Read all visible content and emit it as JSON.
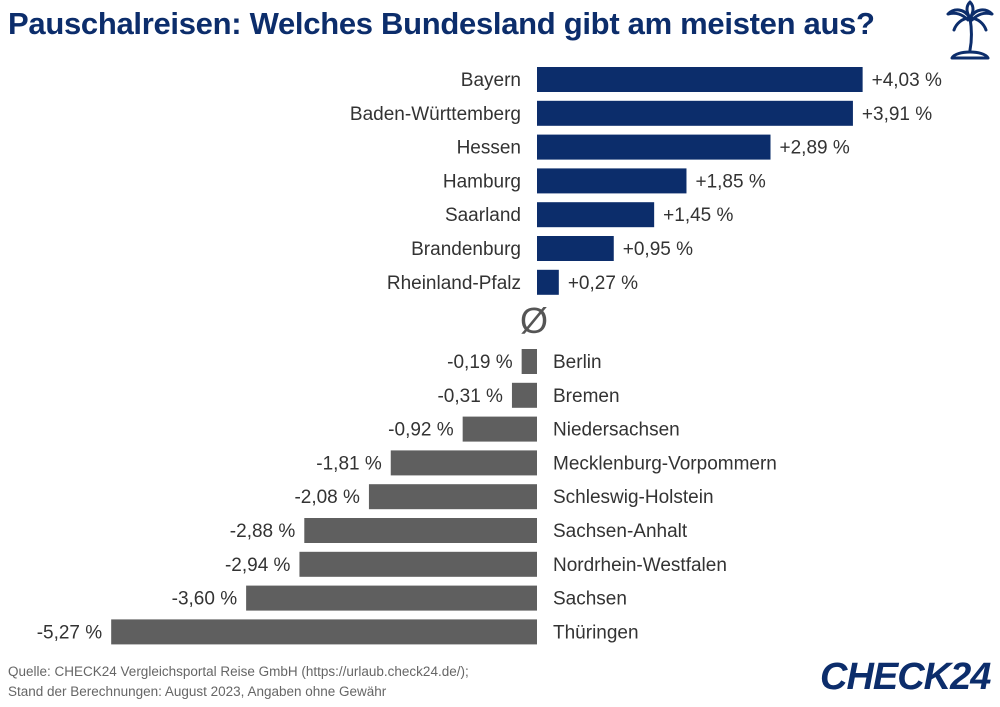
{
  "title": "Pauschalreisen: Welches Bundesland gibt am meisten aus?",
  "average_symbol": "Ø",
  "source_line1": "Quelle: CHECK24 Vergleichsportal Reise GmbH (https://urlaub.check24.de/);",
  "source_line2": "Stand der Berechnungen: August  2023, Angaben ohne Gewähr",
  "logo": "CHECK24",
  "icons": {
    "title_icon": "palm-island-icon"
  },
  "colors": {
    "positive": "#0c2d6b",
    "negative": "#5f5f5f"
  },
  "chart_data": {
    "type": "bar",
    "orientation": "horizontal",
    "categories": [
      "Bayern",
      "Baden-Württemberg",
      "Hessen",
      "Hamburg",
      "Saarland",
      "Brandenburg",
      "Rheinland-Pfalz",
      "Berlin",
      "Bremen",
      "Niedersachsen",
      "Mecklenburg-Vorpommern",
      "Schleswig-Holstein",
      "Sachsen-Anhalt",
      "Nordrhein-Westfalen",
      "Sachsen",
      "Thüringen"
    ],
    "values": [
      4.03,
      3.91,
      2.89,
      1.85,
      1.45,
      0.95,
      0.27,
      -0.19,
      -0.31,
      -0.92,
      -1.81,
      -2.08,
      -2.88,
      -2.94,
      -3.6,
      -5.27
    ],
    "value_labels": [
      "+4,03 %",
      "+3,91 %",
      "+2,89 %",
      "+1,85 %",
      "+1,45 %",
      "+0,95 %",
      "+0,27 %",
      "-0,19 %",
      "-0,31 %",
      "-0,92 %",
      "-1,81 %",
      "-2,08 %",
      "-2,88 %",
      "-2,94 %",
      "-3,60 %",
      "-5,27 %"
    ],
    "unit": "%"
  }
}
